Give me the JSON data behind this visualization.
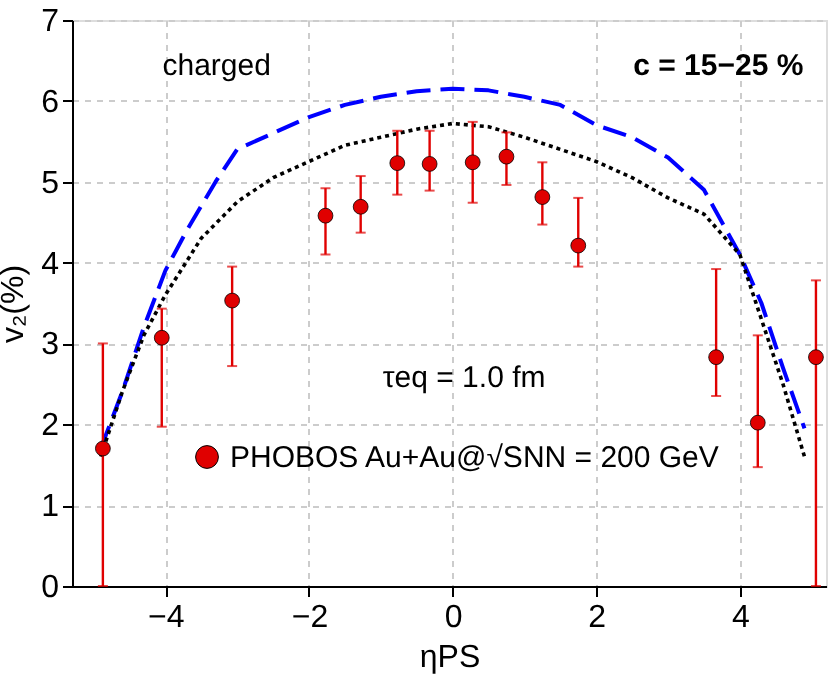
{
  "chart_data": {
    "type": "scatter",
    "xlabel": "ηPS",
    "ylabel": "v₂(%)",
    "annotations": [
      "charged",
      "c = 15−25 %",
      "τeq = 1.0 fm"
    ],
    "xlim": [
      -5.3,
      5.2
    ],
    "xticks": [
      -4,
      -2,
      0,
      2,
      4
    ],
    "ylim": [
      0,
      7
    ],
    "yticks": [
      0,
      1,
      2,
      3,
      4,
      5,
      6,
      7
    ],
    "grid": true,
    "legend": "bottom",
    "series": [
      {
        "type": "line",
        "color": "#0000ff",
        "line_style": "dashed",
        "x": [
          -4.9,
          -4.6,
          -4.3,
          -4.0,
          -3.7,
          -3.3,
          -3.0,
          -2.5,
          -2.0,
          -1.5,
          -1.0,
          -0.5,
          0,
          0.5,
          1.0,
          1.5,
          2.0,
          2.5,
          3.0,
          3.5,
          4.0,
          4.3,
          4.6,
          4.9
        ],
        "values": [
          1.7,
          2.4,
          3.2,
          3.9,
          4.4,
          5.0,
          5.4,
          5.6,
          5.8,
          5.95,
          6.05,
          6.12,
          6.15,
          6.13,
          6.05,
          5.95,
          5.7,
          5.55,
          5.3,
          4.9,
          4.1,
          3.5,
          2.7,
          1.95
        ]
      },
      {
        "type": "line",
        "color": "#000000",
        "line_style": "dotted",
        "x": [
          -4.9,
          -4.6,
          -4.3,
          -4.0,
          -3.5,
          -3.0,
          -2.5,
          -2.0,
          -1.5,
          -1.0,
          -0.5,
          0,
          0.5,
          1.0,
          1.5,
          2.0,
          2.5,
          3.0,
          3.5,
          4.0,
          4.3,
          4.6,
          4.9
        ],
        "values": [
          1.6,
          2.4,
          3.1,
          3.6,
          4.3,
          4.75,
          5.05,
          5.25,
          5.45,
          5.55,
          5.65,
          5.72,
          5.68,
          5.55,
          5.4,
          5.25,
          5.05,
          4.8,
          4.6,
          4.1,
          3.3,
          2.5,
          1.6
        ]
      },
      {
        "marker": "circle",
        "name": "PHOBOS Au+Au@√SNN = 200 GeV",
        "color": "#e00000",
        "x": [
          -4.87,
          -4.05,
          -3.07,
          -1.77,
          -1.28,
          -0.77,
          -0.32,
          0.28,
          0.75,
          1.25,
          1.75,
          3.67,
          4.25,
          5.06
        ],
        "values": [
          1.7,
          3.07,
          3.53,
          4.58,
          4.69,
          5.23,
          5.22,
          5.24,
          5.31,
          4.81,
          4.21,
          2.83,
          2.02,
          2.83
        ],
        "errors": [
          [
            0,
            3.0
          ],
          [
            1.97,
            3.43
          ],
          [
            2.72,
            3.95
          ],
          [
            4.1,
            4.92
          ],
          [
            4.37,
            5.07
          ],
          [
            4.84,
            5.63
          ],
          [
            4.89,
            5.63
          ],
          [
            4.74,
            5.74
          ],
          [
            4.96,
            5.61
          ],
          [
            4.47,
            5.24
          ],
          [
            3.95,
            4.8
          ],
          [
            2.35,
            3.92
          ],
          [
            1.47,
            3.1
          ],
          [
            0,
            3.78
          ]
        ]
      }
    ]
  }
}
